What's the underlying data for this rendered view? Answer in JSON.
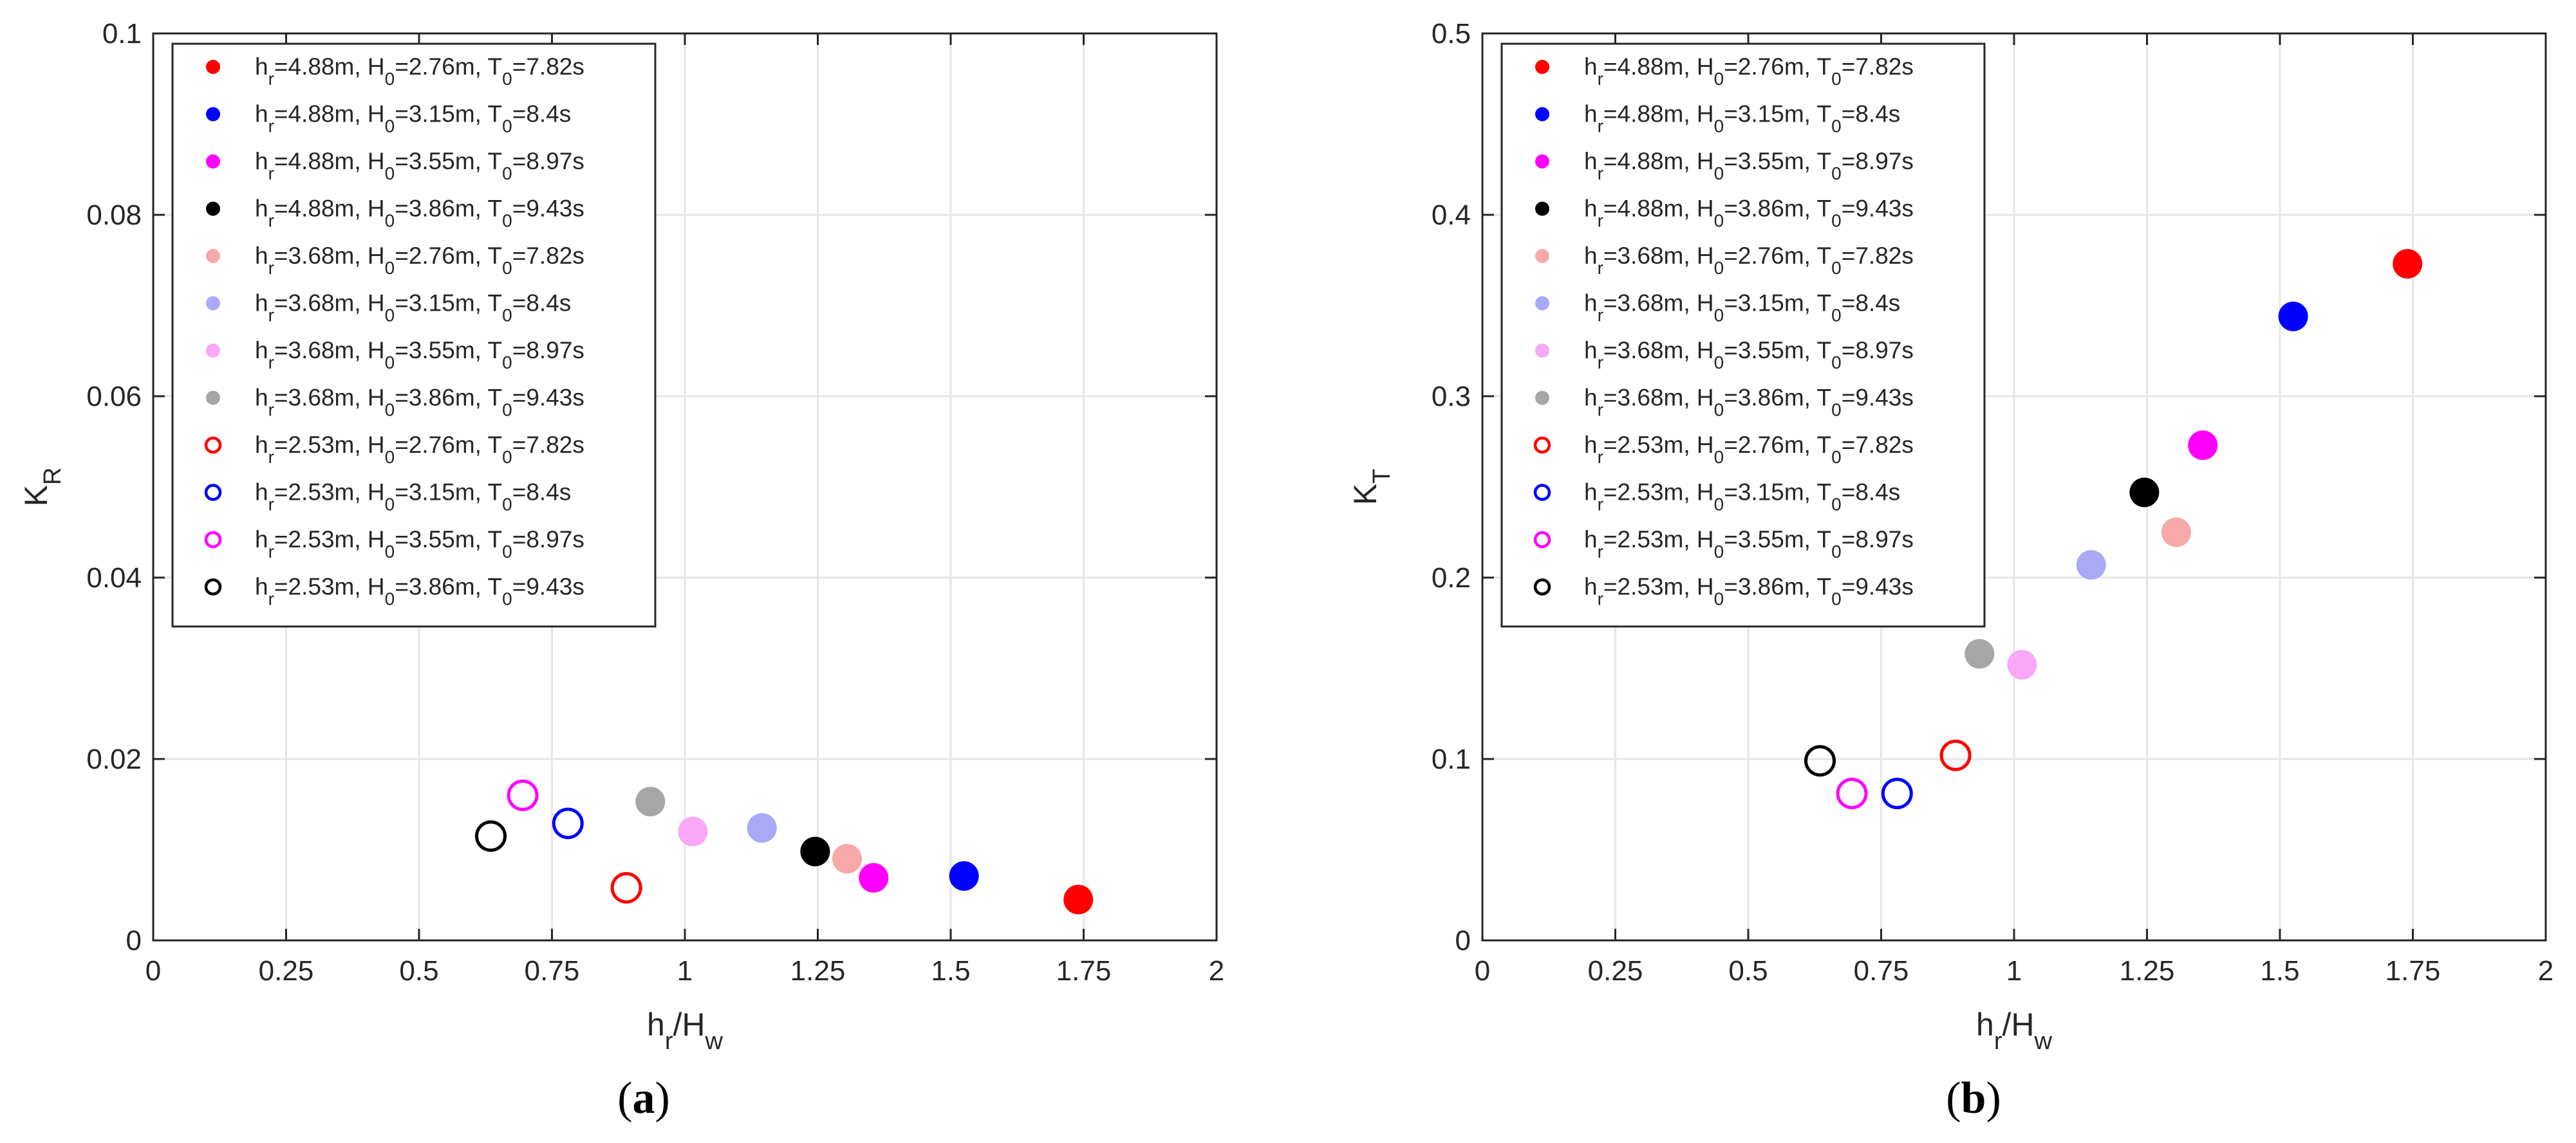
{
  "chart_data": [
    {
      "type": "scatter",
      "panel_label": "(a)",
      "panel_letter": "a",
      "xlabel": {
        "base": "h",
        "sub1": "r",
        "mid": "/H",
        "sub2": "w"
      },
      "ylabel": {
        "base": "K",
        "sub": "R"
      },
      "xlim": [
        0,
        2
      ],
      "ylim": [
        0,
        0.1
      ],
      "xticks": [
        0,
        0.25,
        0.5,
        0.75,
        1,
        1.25,
        1.5,
        1.75,
        2
      ],
      "xtick_labels": [
        "0",
        "0.25",
        "0.5",
        "0.75",
        "1",
        "1.25",
        "1.5",
        "1.75",
        "2"
      ],
      "yticks": [
        0,
        0.02,
        0.04,
        0.06,
        0.08,
        0.1
      ],
      "ytick_labels": [
        "0",
        "0.02",
        "0.04",
        "0.06",
        "0.08",
        "0.1"
      ],
      "grid": true,
      "legend_position": "top-left",
      "points": [
        {
          "series": 0,
          "x": 1.74,
          "y": 0.0045
        },
        {
          "series": 1,
          "x": 1.525,
          "y": 0.0071
        },
        {
          "series": 2,
          "x": 1.355,
          "y": 0.0069
        },
        {
          "series": 3,
          "x": 1.245,
          "y": 0.0098
        },
        {
          "series": 4,
          "x": 1.305,
          "y": 0.009
        },
        {
          "series": 5,
          "x": 1.145,
          "y": 0.0124
        },
        {
          "series": 6,
          "x": 1.015,
          "y": 0.012
        },
        {
          "series": 7,
          "x": 0.935,
          "y": 0.0153
        },
        {
          "series": 8,
          "x": 0.89,
          "y": 0.0058
        },
        {
          "series": 9,
          "x": 0.78,
          "y": 0.0129
        },
        {
          "series": 10,
          "x": 0.695,
          "y": 0.016
        },
        {
          "series": 11,
          "x": 0.635,
          "y": 0.0115
        }
      ]
    },
    {
      "type": "scatter",
      "panel_label": "(b)",
      "panel_letter": "b",
      "xlabel": {
        "base": "h",
        "sub1": "r",
        "mid": "/H",
        "sub2": "w"
      },
      "ylabel": {
        "base": "K",
        "sub": "T"
      },
      "xlim": [
        0,
        2
      ],
      "ylim": [
        0,
        0.5
      ],
      "xticks": [
        0,
        0.25,
        0.5,
        0.75,
        1,
        1.25,
        1.5,
        1.75,
        2
      ],
      "xtick_labels": [
        "0",
        "0.25",
        "0.5",
        "0.75",
        "1",
        "1.25",
        "1.5",
        "1.75",
        "2"
      ],
      "yticks": [
        0,
        0.1,
        0.2,
        0.3,
        0.4,
        0.5
      ],
      "ytick_labels": [
        "0",
        "0.1",
        "0.2",
        "0.3",
        "0.4",
        "0.5"
      ],
      "grid": true,
      "legend_position": "top-left",
      "points": [
        {
          "series": 0,
          "x": 1.74,
          "y": 0.373
        },
        {
          "series": 1,
          "x": 1.525,
          "y": 0.344
        },
        {
          "series": 2,
          "x": 1.355,
          "y": 0.273
        },
        {
          "series": 3,
          "x": 1.245,
          "y": 0.247
        },
        {
          "series": 4,
          "x": 1.305,
          "y": 0.225
        },
        {
          "series": 5,
          "x": 1.145,
          "y": 0.207
        },
        {
          "series": 6,
          "x": 1.015,
          "y": 0.152
        },
        {
          "series": 7,
          "x": 0.935,
          "y": 0.158
        },
        {
          "series": 8,
          "x": 0.89,
          "y": 0.102
        },
        {
          "series": 9,
          "x": 0.78,
          "y": 0.081
        },
        {
          "series": 10,
          "x": 0.695,
          "y": 0.081
        },
        {
          "series": 11,
          "x": 0.635,
          "y": 0.099
        }
      ]
    }
  ],
  "series": [
    {
      "hr": "4.88",
      "H0": "2.76",
      "T0": "7.82",
      "color": "#ff0000",
      "filled": true
    },
    {
      "hr": "4.88",
      "H0": "3.15",
      "T0": "8.4",
      "color": "#0000ff",
      "filled": true
    },
    {
      "hr": "4.88",
      "H0": "3.55",
      "T0": "8.97",
      "color": "#ff00ff",
      "filled": true
    },
    {
      "hr": "4.88",
      "H0": "3.86",
      "T0": "9.43",
      "color": "#000000",
      "filled": true
    },
    {
      "hr": "3.68",
      "H0": "2.76",
      "T0": "7.82",
      "color": "#f7a8a8",
      "filled": true
    },
    {
      "hr": "3.68",
      "H0": "3.15",
      "T0": "8.4",
      "color": "#a9a9f5",
      "filled": true
    },
    {
      "hr": "3.68",
      "H0": "3.55",
      "T0": "8.97",
      "color": "#f9a7f9",
      "filled": true
    },
    {
      "hr": "3.68",
      "H0": "3.86",
      "T0": "9.43",
      "color": "#a6a6a6",
      "filled": true
    },
    {
      "hr": "2.53",
      "H0": "2.76",
      "T0": "7.82",
      "color": "#ff0000",
      "filled": false
    },
    {
      "hr": "2.53",
      "H0": "3.15",
      "T0": "8.4",
      "color": "#0000ff",
      "filled": false
    },
    {
      "hr": "2.53",
      "H0": "3.55",
      "T0": "8.97",
      "color": "#ff00ff",
      "filled": false
    },
    {
      "hr": "2.53",
      "H0": "3.86",
      "T0": "9.43",
      "color": "#000000",
      "filled": false
    }
  ],
  "colors": {
    "grid": "#e6e6e6",
    "axis": "#262626",
    "text": "#262626"
  }
}
